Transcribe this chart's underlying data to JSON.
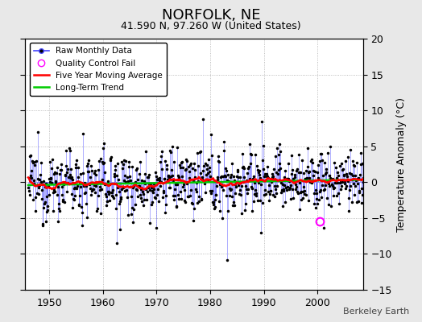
{
  "title": "NORFOLK, NE",
  "subtitle": "41.590 N, 97.260 W (United States)",
  "ylabel_right": "Temperature Anomaly (°C)",
  "xlim": [
    1945.5,
    2008.5
  ],
  "ylim": [
    -15,
    20
  ],
  "yticks": [
    -15,
    -10,
    -5,
    0,
    5,
    10,
    15,
    20
  ],
  "xticks": [
    1950,
    1960,
    1970,
    1980,
    1990,
    2000
  ],
  "start_year": 1946,
  "end_year": 2008,
  "background_color": "#e8e8e8",
  "plot_bg_color": "#ffffff",
  "raw_line_color": "#4444ff",
  "raw_dot_color": "#000000",
  "moving_avg_color": "#ff0000",
  "trend_color": "#00cc00",
  "qc_fail_color": "#ff00ff",
  "watermark": "Berkeley Earth",
  "seed": 42
}
